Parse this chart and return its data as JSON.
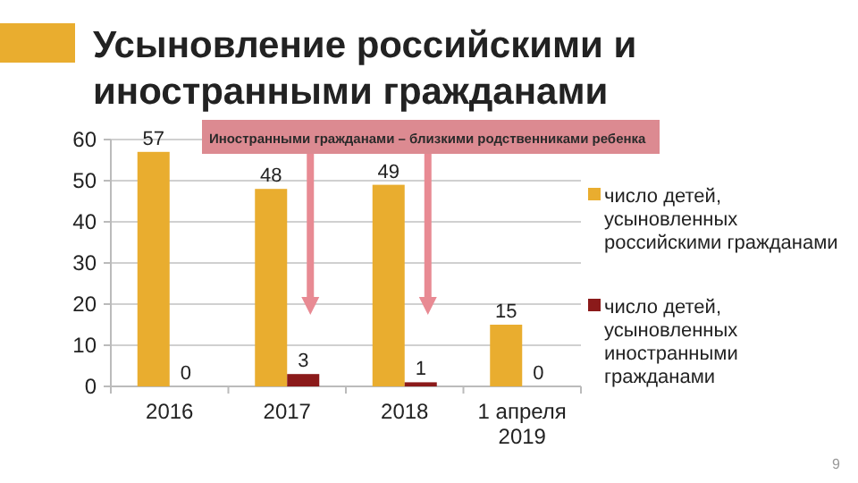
{
  "chart_data": {
    "type": "bar",
    "title": "Усыновление российскими и иностранными гражданами",
    "categories": [
      "2016",
      "2017",
      "2018",
      "1 апреля 2019"
    ],
    "series": [
      {
        "name": "число детей, усыновленных российскими гражданами",
        "color": "#e9ad2f",
        "values": [
          57,
          48,
          49,
          15
        ]
      },
      {
        "name": "число детей, усыновленных иностранными гражданами",
        "color": "#8b1a1a",
        "values": [
          0,
          3,
          1,
          0
        ]
      }
    ],
    "ylim": [
      0,
      60
    ],
    "yticks": [
      0,
      10,
      20,
      30,
      40,
      50,
      60
    ],
    "grid": "y",
    "legend": "right",
    "data_labels": true,
    "annotations": [
      "Иностранными гражданами – близкими родственниками ребенка",
      "9"
    ]
  }
}
